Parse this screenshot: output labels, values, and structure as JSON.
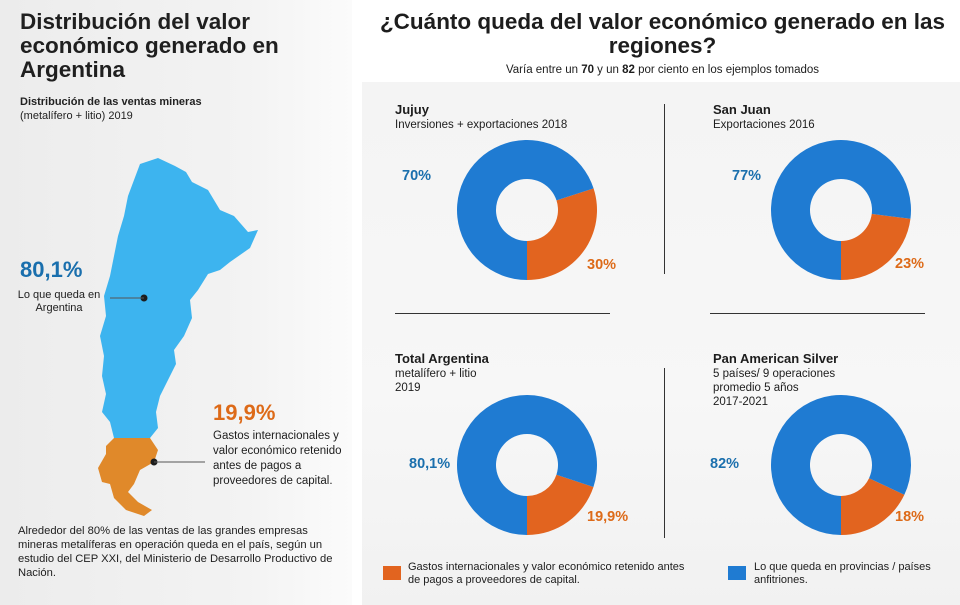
{
  "left": {
    "title": "Distribución del valor económico generado en Argentina",
    "subtitle_bold": "Distribución de las ventas mineras",
    "subtitle": "(metalífero + litio) 2019",
    "argentina_pct": "80,1%",
    "argentina_label": "Lo que queda en Argentina",
    "international_pct": "19,9%",
    "international_label": "Gastos internacionales y valor económico retenido antes de pagos a proveedores de capital.",
    "footnote": "Alrededor del 80% de las ventas de las grandes empresas mineras metalíferas en operación queda en el país, según un estudio del CEP XXI, del Ministerio de Desarrollo Productivo de Nación."
  },
  "right": {
    "title": "¿Cuánto queda del valor económico generado en las regiones?",
    "subtitle_pre": "Varía entre un ",
    "subtitle_a": "70",
    "subtitle_mid": " y un ",
    "subtitle_b": "82",
    "subtitle_post": " por ciento en los ejemplos tomados"
  },
  "colors": {
    "blue": "#1a6fad",
    "donut_blue": "#1f7bd2",
    "orange": "#e2641f",
    "map_blue": "#3db4ef",
    "map_orange": "#e0892a"
  },
  "chart_data": [
    {
      "type": "pie",
      "title": "Jujuy",
      "description": [
        "Inversiones + exportaciones 2018"
      ],
      "categories": [
        "Lo que queda en provincias / países anfitriones",
        "Gastos internacionales y valor económico retenido antes de pagos a proveedores de capital."
      ],
      "values": [
        70,
        30
      ],
      "labels": [
        "70%",
        "30%"
      ]
    },
    {
      "type": "pie",
      "title": "San Juan",
      "description": [
        "Exportaciones 2016"
      ],
      "categories": [
        "Lo que queda en provincias / países anfitriones",
        "Gastos internacionales y valor económico retenido antes de pagos a proveedores de capital."
      ],
      "values": [
        77,
        23
      ],
      "labels": [
        "77%",
        "23%"
      ]
    },
    {
      "type": "pie",
      "title": "Total Argentina",
      "description": [
        "metalífero + litio",
        "2019"
      ],
      "categories": [
        "Lo que queda en provincias / países anfitriones",
        "Gastos internacionales y valor económico retenido antes de pagos a proveedores de capital."
      ],
      "values": [
        80.1,
        19.9
      ],
      "labels": [
        "80,1%",
        "19,9%"
      ]
    },
    {
      "type": "pie",
      "title": "Pan American Silver",
      "description": [
        "5 países/ 9 operaciones",
        "promedio 5 años",
        "2017-2021"
      ],
      "categories": [
        "Lo que queda en provincias / países anfitriones",
        "Gastos internacionales y valor económico retenido antes de pagos a proveedores de capital."
      ],
      "values": [
        82,
        18
      ],
      "labels": [
        "82%",
        "18%"
      ]
    }
  ],
  "legend": {
    "orange_label": "Gastos internacionales y valor económico retenido antes de pagos a proveedores de capital.",
    "blue_label": "Lo que queda en provincias / países anfitriones."
  }
}
